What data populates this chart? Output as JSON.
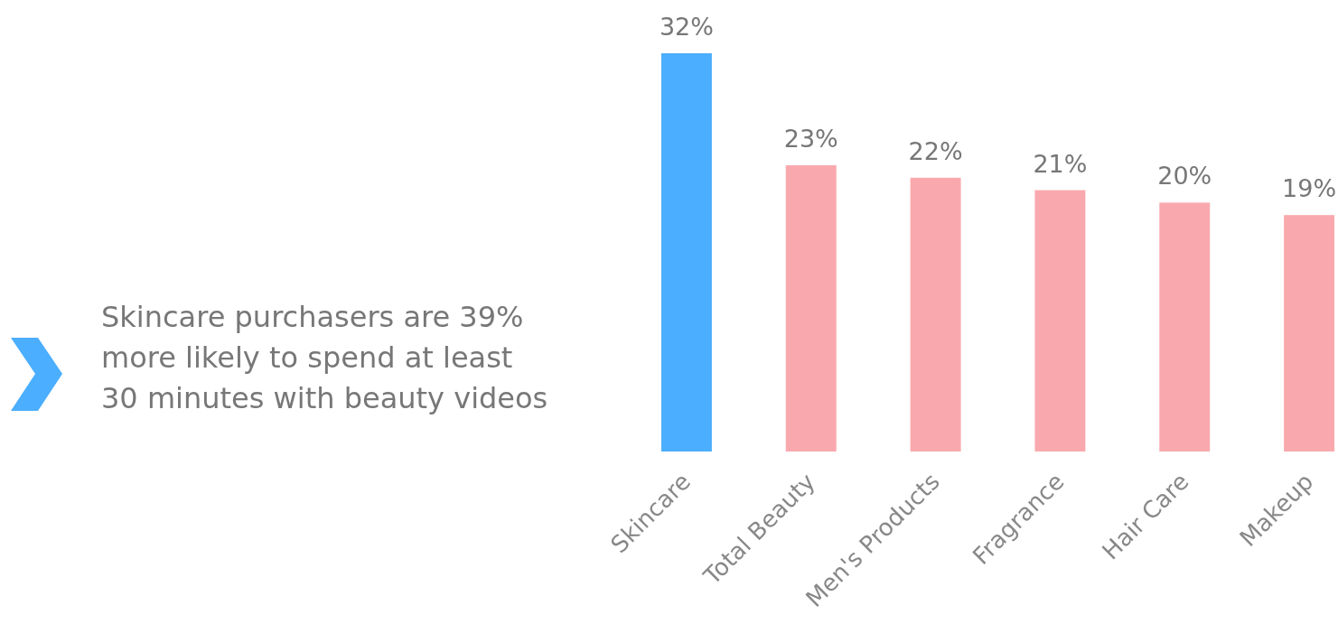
{
  "chart_data": {
    "type": "bar",
    "categories": [
      "Skincare",
      "Total Beauty",
      "Men's Products",
      "Fragrance",
      "Hair Care",
      "Makeup"
    ],
    "values": [
      32,
      23,
      22,
      21,
      20,
      19
    ],
    "colors": [
      "#4baefe",
      "#f9a9ae",
      "#f9a9ae",
      "#f9a9ae",
      "#f9a9ae",
      "#f9a9ae"
    ],
    "data_labels": true,
    "value_labels": [
      "32%",
      "23%",
      "22%",
      "21%",
      "20%",
      "19%"
    ],
    "annotations": [
      "Skincare purchasers are 39% more likely to spend at least 30 minutes with beauty videos"
    ]
  }
}
